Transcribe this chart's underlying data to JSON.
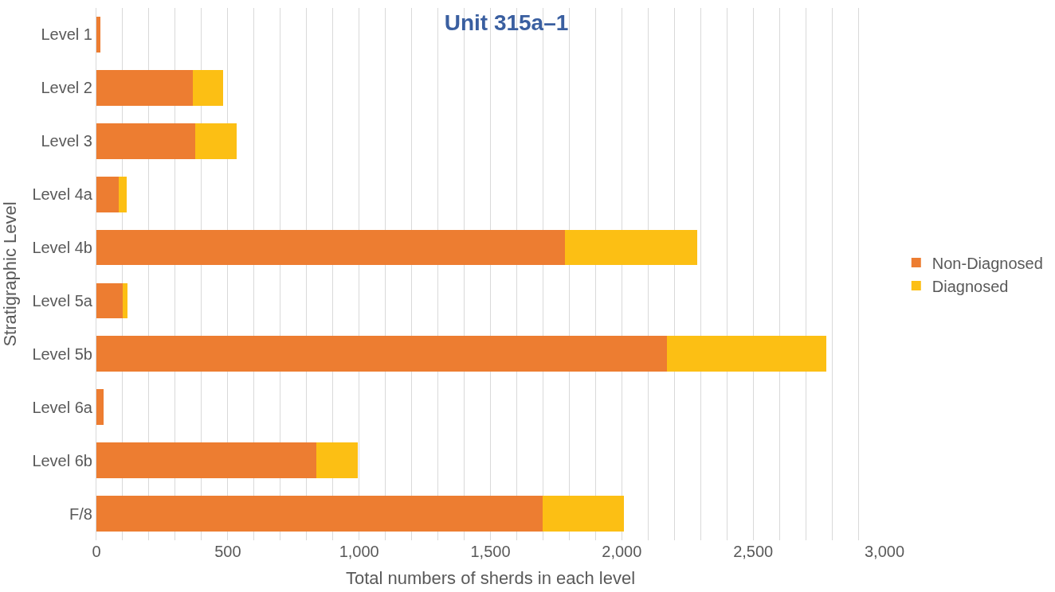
{
  "chart_data": {
    "type": "bar",
    "orientation": "horizontal",
    "stacked": true,
    "title": "Unit 315a–1",
    "xlabel": "Total numbers of sherds in each level",
    "ylabel": "Stratigraphic Level",
    "categories": [
      "Level 1",
      "Level 2",
      "Level 3",
      "Level 4a",
      "Level 4b",
      "Level 5a",
      "Level 5b",
      "Level 6a",
      "Level 6b",
      "F/8"
    ],
    "series": [
      {
        "name": "Non-Diagnosed",
        "color": "#ed7d31",
        "values": [
          15,
          367,
          376,
          84,
          1784,
          99,
          2172,
          27,
          836,
          1699
        ]
      },
      {
        "name": "Diagnosed",
        "color": "#fcbf14",
        "values": [
          0,
          114,
          157,
          32,
          503,
          20,
          608,
          0,
          159,
          310
        ]
      }
    ],
    "xlim": [
      0,
      3000
    ],
    "xticks": [
      {
        "value": 0,
        "label": "0"
      },
      {
        "value": 100,
        "label": null
      },
      {
        "value": 200,
        "label": null
      },
      {
        "value": 300,
        "label": null
      },
      {
        "value": 400,
        "label": null
      },
      {
        "value": 500,
        "label": "500"
      },
      {
        "value": 600,
        "label": null
      },
      {
        "value": 700,
        "label": null
      },
      {
        "value": 800,
        "label": null
      },
      {
        "value": 900,
        "label": null
      },
      {
        "value": 1000,
        "label": "1,000"
      },
      {
        "value": 1100,
        "label": null
      },
      {
        "value": 1200,
        "label": null
      },
      {
        "value": 1300,
        "label": null
      },
      {
        "value": 1400,
        "label": null
      },
      {
        "value": 1500,
        "label": "1,500"
      },
      {
        "value": 1600,
        "label": null
      },
      {
        "value": 1700,
        "label": null
      },
      {
        "value": 1800,
        "label": null
      },
      {
        "value": 1900,
        "label": null
      },
      {
        "value": 2000,
        "label": "2,000"
      },
      {
        "value": 2100,
        "label": null
      },
      {
        "value": 2200,
        "label": null
      },
      {
        "value": 2300,
        "label": null
      },
      {
        "value": 2400,
        "label": null
      },
      {
        "value": 2500,
        "label": "2,500"
      },
      {
        "value": 2600,
        "label": null
      },
      {
        "value": 2700,
        "label": null
      },
      {
        "value": 2800,
        "label": null
      },
      {
        "value": 2900,
        "label": null
      },
      {
        "value": 3000,
        "label": "3,000"
      }
    ],
    "grid": "x",
    "legend": "right"
  }
}
